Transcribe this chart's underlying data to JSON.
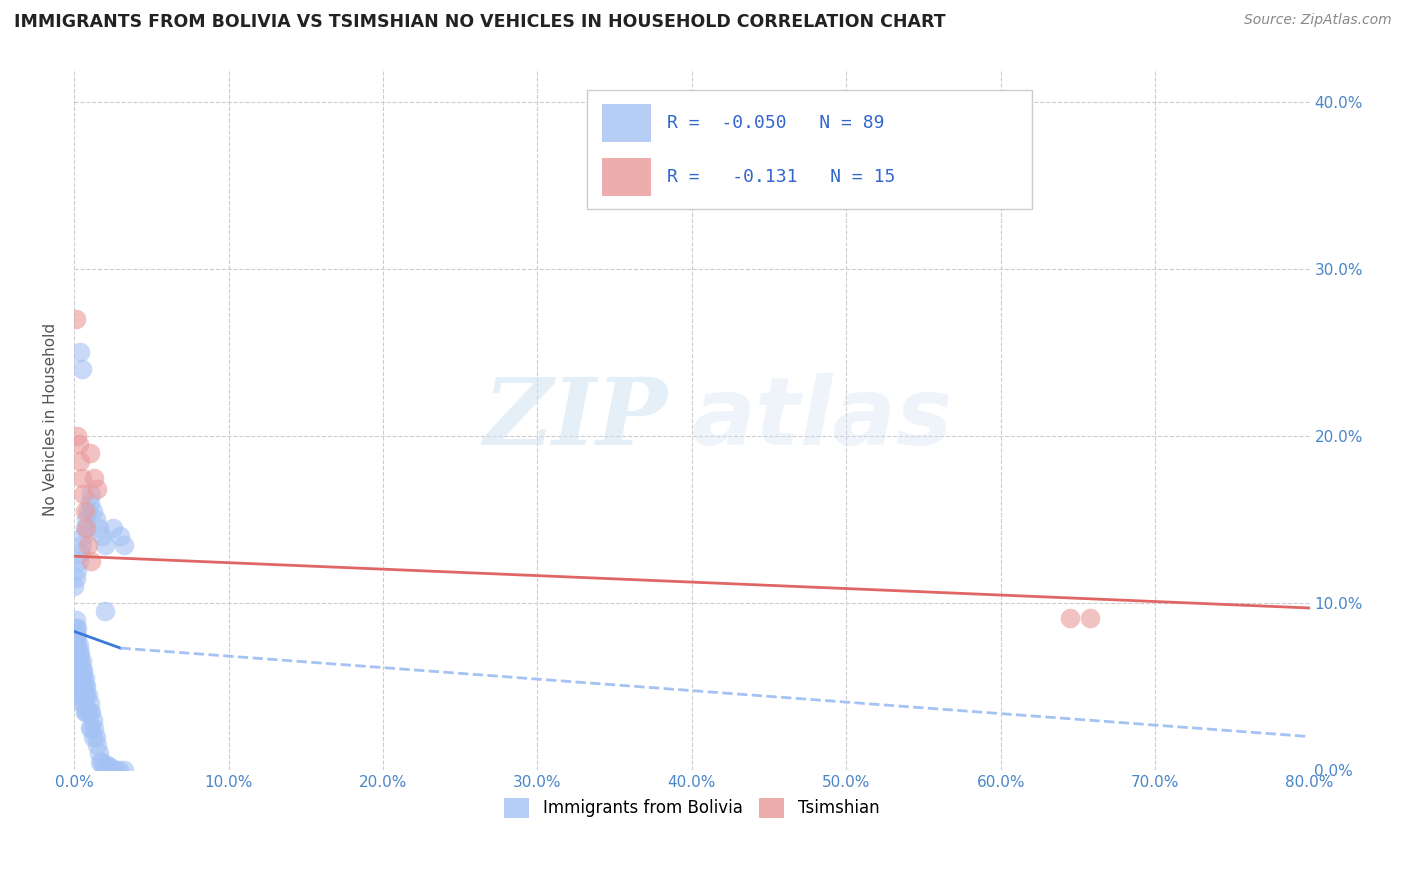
{
  "title": "IMMIGRANTS FROM BOLIVIA VS TSIMSHIAN NO VEHICLES IN HOUSEHOLD CORRELATION CHART",
  "source": "Source: ZipAtlas.com",
  "ylabel": "No Vehicles in Household",
  "watermark_zip": "ZIP",
  "watermark_atlas": "atlas",
  "legend1_label": "Immigrants from Bolivia",
  "legend2_label": "Tsimshian",
  "r1": -0.05,
  "n1": 89,
  "r2": -0.131,
  "n2": 15,
  "blue_color": "#a4c2f4",
  "pink_color": "#ea9999",
  "line_blue_color": "#3c78d8",
  "line_pink_color": "#e06666",
  "dashed_line_color": "#a4c2f4",
  "bg_color": "#ffffff",
  "grid_color": "#cccccc",
  "xlim": [
    0.0,
    0.8
  ],
  "ylim": [
    0.0,
    0.42
  ],
  "blue_dots": {
    "x": [
      0.0,
      0.0,
      0.001,
      0.001,
      0.001,
      0.001,
      0.001,
      0.001,
      0.001,
      0.002,
      0.002,
      0.002,
      0.002,
      0.002,
      0.002,
      0.003,
      0.003,
      0.003,
      0.003,
      0.003,
      0.003,
      0.003,
      0.004,
      0.004,
      0.004,
      0.004,
      0.004,
      0.005,
      0.005,
      0.005,
      0.005,
      0.005,
      0.006,
      0.006,
      0.006,
      0.006,
      0.007,
      0.007,
      0.007,
      0.007,
      0.008,
      0.008,
      0.008,
      0.009,
      0.009,
      0.01,
      0.01,
      0.01,
      0.011,
      0.011,
      0.012,
      0.012,
      0.013,
      0.014,
      0.015,
      0.016,
      0.017,
      0.018,
      0.019,
      0.021,
      0.022,
      0.023,
      0.025,
      0.027,
      0.029,
      0.032,
      0.0,
      0.001,
      0.002,
      0.003,
      0.004,
      0.005,
      0.006,
      0.007,
      0.008,
      0.009,
      0.01,
      0.011,
      0.012,
      0.014,
      0.016,
      0.018,
      0.02,
      0.025,
      0.03,
      0.032,
      0.004,
      0.005,
      0.02
    ],
    "y": [
      0.085,
      0.075,
      0.09,
      0.085,
      0.08,
      0.075,
      0.07,
      0.065,
      0.06,
      0.085,
      0.08,
      0.075,
      0.07,
      0.065,
      0.055,
      0.075,
      0.07,
      0.065,
      0.06,
      0.055,
      0.05,
      0.045,
      0.07,
      0.065,
      0.06,
      0.055,
      0.045,
      0.065,
      0.06,
      0.055,
      0.05,
      0.04,
      0.06,
      0.055,
      0.05,
      0.04,
      0.055,
      0.05,
      0.045,
      0.035,
      0.05,
      0.045,
      0.035,
      0.045,
      0.035,
      0.04,
      0.035,
      0.025,
      0.035,
      0.025,
      0.03,
      0.02,
      0.025,
      0.02,
      0.015,
      0.01,
      0.005,
      0.005,
      0.003,
      0.003,
      0.002,
      0.002,
      0.0,
      0.0,
      0.0,
      0.0,
      0.11,
      0.115,
      0.12,
      0.125,
      0.13,
      0.135,
      0.14,
      0.145,
      0.15,
      0.155,
      0.16,
      0.165,
      0.155,
      0.15,
      0.145,
      0.14,
      0.135,
      0.145,
      0.14,
      0.135,
      0.25,
      0.24,
      0.095
    ]
  },
  "pink_dots": {
    "x": [
      0.001,
      0.002,
      0.003,
      0.004,
      0.005,
      0.006,
      0.007,
      0.008,
      0.009,
      0.01,
      0.011,
      0.013,
      0.015,
      0.645,
      0.658
    ],
    "y": [
      0.27,
      0.2,
      0.195,
      0.185,
      0.175,
      0.165,
      0.155,
      0.145,
      0.135,
      0.19,
      0.125,
      0.175,
      0.168,
      0.091,
      0.091
    ]
  },
  "blue_line_solid": {
    "x0": 0.0,
    "x1": 0.03,
    "y0": 0.083,
    "y1": 0.073
  },
  "blue_line_dashed": {
    "x0": 0.03,
    "x1": 0.8,
    "y0": 0.073,
    "y1": 0.02
  },
  "pink_line": {
    "x0": 0.0,
    "x1": 0.8,
    "y0": 0.128,
    "y1": 0.097
  }
}
